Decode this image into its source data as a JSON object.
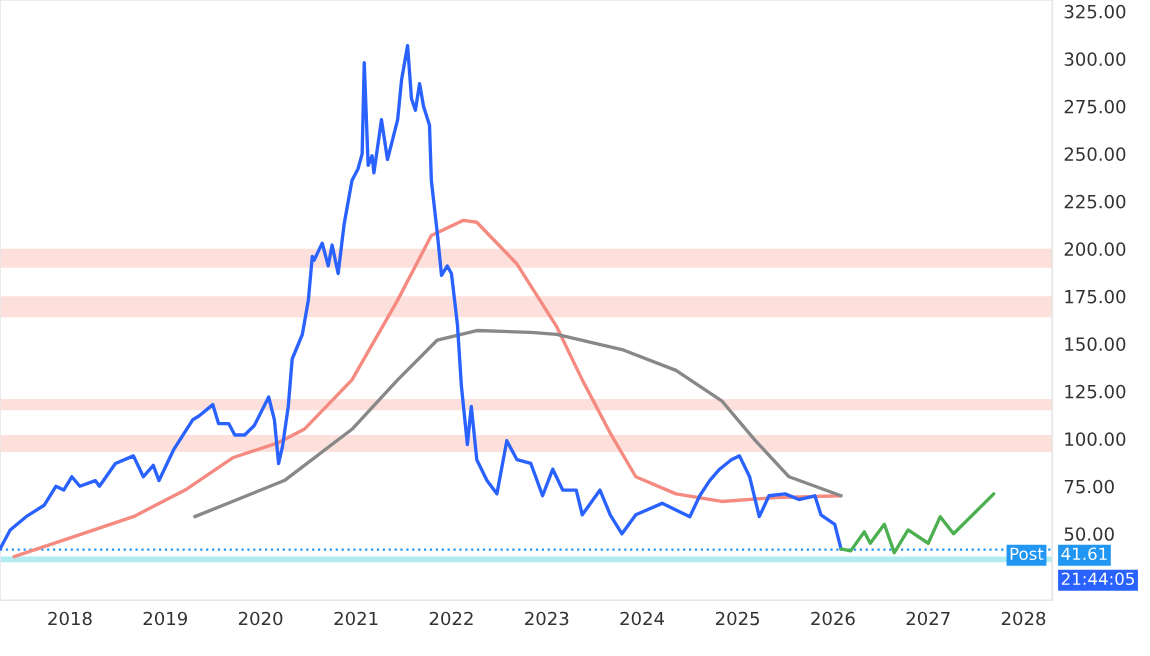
{
  "chart_data": {
    "type": "line",
    "xlim": [
      "2017-04-08",
      "2028-04-20"
    ],
    "ylim": [
      15,
      331
    ],
    "xticks": [
      "2018",
      "2019",
      "2020",
      "2021",
      "2022",
      "2023",
      "2024",
      "2025",
      "2026",
      "2027",
      "2028"
    ],
    "yticks": [
      {
        "value": 50,
        "label": "50.00"
      },
      {
        "value": 75,
        "label": "75.00"
      },
      {
        "value": 100,
        "label": "100.00"
      },
      {
        "value": 125,
        "label": "125.00"
      },
      {
        "value": 150,
        "label": "150.00"
      },
      {
        "value": 175,
        "label": "175.00"
      },
      {
        "value": 200,
        "label": "200.00"
      },
      {
        "value": 225,
        "label": "225.00"
      },
      {
        "value": 250,
        "label": "250.00"
      },
      {
        "value": 275,
        "label": "275.00"
      },
      {
        "value": 300,
        "label": "300.00"
      },
      {
        "value": 325,
        "label": "325.00"
      }
    ],
    "grid": false,
    "legend": false,
    "marker": "none",
    "line_style": "solid",
    "series": [
      {
        "color": "#f48a80",
        "x": [
          "2017-06-01",
          "2017-12-16",
          "2018-09-01",
          "2019-03-18",
          "2019-09-16",
          "2020-03-10",
          "2020-06-16",
          "2020-12-16",
          "2021-06-09",
          "2021-10-16",
          "2022-02-16",
          "2022-04-08",
          "2022-09-09",
          "2023-02-08",
          "2023-05-17",
          "2023-09-01",
          "2023-12-08",
          "2024-05-10",
          "2024-11-01",
          "2025-05-24",
          "2026-02-01"
        ],
        "values": [
          38,
          47,
          59,
          73,
          90,
          98,
          105,
          131,
          173,
          207,
          215,
          214,
          192,
          159,
          131,
          103,
          80,
          71,
          67,
          69,
          70
        ]
      },
      {
        "color": "#888888",
        "x": [
          "2019-04-24",
          "2020-04-01",
          "2020-12-16",
          "2021-06-09",
          "2021-11-08",
          "2022-04-08",
          "2022-11-01",
          "2023-02-08",
          "2023-10-16",
          "2024-05-10",
          "2024-11-01",
          "2025-03-10",
          "2025-07-17",
          "2026-02-01"
        ],
        "values": [
          59,
          78,
          105,
          131,
          152,
          157,
          156,
          155,
          147,
          136,
          120,
          99,
          80,
          70
        ]
      },
      {
        "color": "#2962ff",
        "x": [
          "2017-04-08",
          "2017-05-17",
          "2017-07-17",
          "2017-09-24",
          "2017-11-08",
          "2017-12-08",
          "2018-01-08",
          "2018-02-08",
          "2018-04-08",
          "2018-04-24",
          "2018-06-24",
          "2018-09-01",
          "2018-10-09",
          "2018-11-16",
          "2018-12-08",
          "2019-02-01",
          "2019-04-16",
          "2019-05-10",
          "2019-07-02",
          "2019-07-24",
          "2019-09-01",
          "2019-09-24",
          "2019-11-01",
          "2019-12-08",
          "2020-02-01",
          "2020-02-23",
          "2020-03-10",
          "2020-03-25",
          "2020-04-16",
          "2020-05-01",
          "2020-06-09",
          "2020-07-02",
          "2020-07-17",
          "2020-07-24",
          "2020-08-24",
          "2020-09-16",
          "2020-10-01",
          "2020-10-24",
          "2020-11-16",
          "2020-12-16",
          "2021-01-08",
          "2021-01-24",
          "2021-02-01",
          "2021-02-16",
          "2021-03-03",
          "2021-03-10",
          "2021-04-08",
          "2021-05-01",
          "2021-06-09",
          "2021-06-24",
          "2021-07-17",
          "2021-08-01",
          "2021-08-16",
          "2021-09-01",
          "2021-09-16",
          "2021-10-09",
          "2021-10-16",
          "2021-11-08",
          "2021-11-24",
          "2021-12-16",
          "2022-01-01",
          "2022-01-24",
          "2022-02-08",
          "2022-03-03",
          "2022-03-18",
          "2022-04-08",
          "2022-05-17",
          "2022-06-24",
          "2022-08-01",
          "2022-09-09",
          "2022-11-01",
          "2022-12-16",
          "2023-01-24",
          "2023-03-03",
          "2023-04-24",
          "2023-05-17",
          "2023-07-24",
          "2023-09-01",
          "2023-10-16",
          "2023-12-08",
          "2024-03-18",
          "2024-07-02",
          "2024-08-09",
          "2024-09-16",
          "2024-10-24",
          "2024-12-08",
          "2025-01-08",
          "2025-02-16",
          "2025-03-25",
          "2025-05-01",
          "2025-07-02",
          "2025-08-24",
          "2025-10-24",
          "2025-11-16",
          "2026-01-08",
          "2026-02-01"
        ],
        "values": [
          42,
          52,
          59,
          65,
          75,
          73,
          80,
          75,
          78,
          75,
          87,
          91,
          80,
          86,
          78,
          94,
          110,
          112,
          118,
          108,
          108,
          102,
          102,
          107,
          122,
          110,
          87,
          96,
          117,
          142,
          155,
          173,
          196,
          194,
          203,
          191,
          202,
          187,
          213,
          236,
          242,
          250,
          298,
          244,
          249,
          240,
          268,
          247,
          268,
          289,
          307,
          279,
          273,
          287,
          275,
          265,
          236,
          208,
          186,
          191,
          187,
          160,
          128,
          97,
          117,
          89,
          78,
          71,
          99,
          89,
          87,
          70,
          84,
          73,
          73,
          60,
          73,
          60,
          50,
          60,
          66,
          59,
          70,
          78,
          84,
          89,
          91,
          80,
          59,
          70,
          71,
          68,
          70,
          60,
          55,
          42
        ]
      },
      {
        "color": "#4caf50",
        "x": [
          "2026-02-01",
          "2026-03-10",
          "2026-05-01",
          "2026-05-24",
          "2026-07-17",
          "2026-08-24",
          "2026-10-16",
          "2027-01-01",
          "2027-02-16",
          "2027-04-08",
          "2027-09-09"
        ],
        "values": [
          42,
          41,
          51,
          45,
          55,
          40,
          52,
          45,
          59,
          50,
          71
        ]
      }
    ],
    "bands": [
      {
        "axis": "y",
        "from": 190,
        "to": 200,
        "color": "#fde0dc"
      },
      {
        "axis": "y",
        "from": 164,
        "to": 175,
        "color": "#fde0dc"
      },
      {
        "axis": "y",
        "from": 115,
        "to": 121,
        "color": "#fde0dc"
      },
      {
        "axis": "y",
        "from": 93,
        "to": 102,
        "color": "#fde0dc"
      },
      {
        "axis": "y",
        "from": 35,
        "to": 38,
        "color": "#b2ebf2"
      }
    ],
    "ref_lines": [
      {
        "axis": "y",
        "value": 41.61,
        "label": "41.61",
        "color": "#2196f3",
        "line_style": "dotted"
      }
    ],
    "annotations": [
      "Post",
      "21:44:05"
    ]
  }
}
